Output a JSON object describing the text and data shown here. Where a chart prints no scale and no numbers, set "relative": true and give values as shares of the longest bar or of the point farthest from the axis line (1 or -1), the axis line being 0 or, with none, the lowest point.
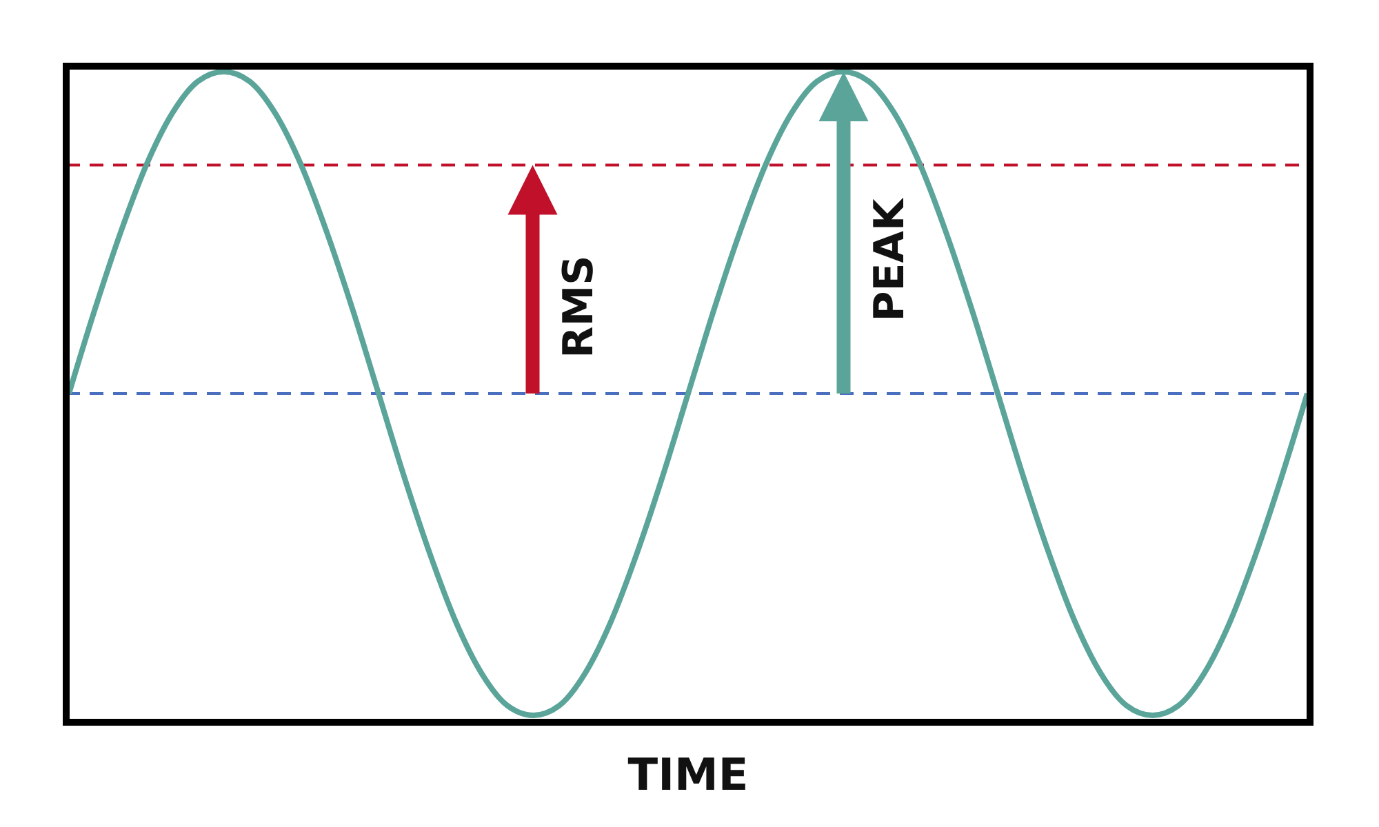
{
  "chart_data": {
    "type": "line",
    "relative": true,
    "xlabel": "TIME",
    "categories": [
      null,
      null,
      null,
      null,
      null,
      null,
      null,
      null,
      null,
      null,
      null,
      null,
      null,
      null,
      null,
      null,
      null,
      null,
      null,
      null,
      null,
      null,
      null,
      null,
      null,
      null,
      null,
      null,
      null,
      null,
      null,
      null,
      null,
      null,
      null,
      null,
      null,
      null,
      null,
      null,
      null,
      null,
      null,
      null,
      null,
      null,
      null,
      null,
      null
    ],
    "series": [
      {
        "color": "#5aa49a",
        "values": [
          0,
          0.26,
          0.5,
          0.71,
          0.87,
          0.97,
          1,
          0.97,
          0.87,
          0.71,
          0.5,
          0.26,
          0,
          -0.26,
          -0.5,
          -0.71,
          -0.87,
          -0.97,
          -1,
          -0.97,
          -0.87,
          -0.71,
          -0.5,
          -0.26,
          0,
          0.26,
          0.5,
          0.71,
          0.87,
          0.97,
          1,
          0.97,
          0.87,
          0.71,
          0.5,
          0.26,
          0,
          -0.26,
          -0.5,
          -0.71,
          -0.87,
          -0.97,
          -1,
          -0.97,
          -0.87,
          -0.71,
          -0.5,
          -0.26,
          0
        ]
      }
    ],
    "ref_lines": [
      {
        "axis": "y",
        "value": 0.71,
        "label": "RMS",
        "color": "#c0102a",
        "line_style": "dashed"
      },
      {
        "axis": "y",
        "value": 0,
        "color": "#4a6fbf",
        "line_style": "dashed"
      }
    ],
    "annotations": [
      "PEAK"
    ],
    "marker": "none",
    "line_style": "solid",
    "grid": false
  }
}
